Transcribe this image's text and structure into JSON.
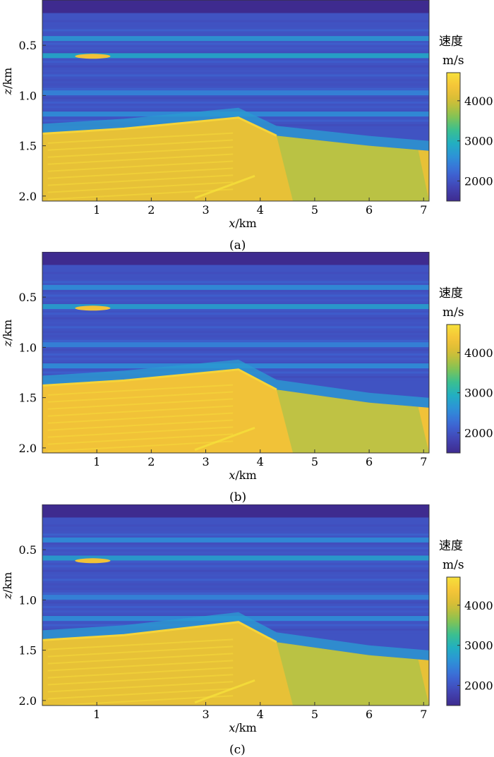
{
  "colormap": [
    "#3e2b8f",
    "#4246b5",
    "#3d67d6",
    "#2f8ed9",
    "#21aec4",
    "#3bc08e",
    "#8ac34f",
    "#d2bd36",
    "#f5c338",
    "#f7e13a"
  ],
  "chart_data": [
    {
      "type": "heatmap",
      "caption": "(a)",
      "xlabel_var": "x",
      "xlabel_unit": "/km",
      "ylabel_var": "z",
      "ylabel_unit": "/km",
      "xlim": [
        0,
        7.1
      ],
      "ylim": [
        2.05,
        0.05
      ],
      "xticks": [
        1,
        2,
        3,
        4,
        5,
        6,
        7
      ],
      "yticks": [
        0.5,
        1.0,
        1.5,
        2.0
      ],
      "ytick_labels": [
        "0.5",
        "1.0",
        "1.5",
        "2.0"
      ],
      "colorbar": {
        "title": "速度",
        "unit": "m/s",
        "range": [
          1500,
          4700
        ],
        "ticks": [
          2000,
          3000,
          4000
        ]
      },
      "water_depth_km": 0.18,
      "bright_lens": {
        "x_range": [
          0.6,
          1.25
        ],
        "z": 0.61
      },
      "layers": [
        {
          "z": 0.43,
          "velocity": 2700
        },
        {
          "z": 0.6,
          "velocity": 2900
        },
        {
          "z": 0.97,
          "velocity": 2500
        },
        {
          "z": 1.18,
          "velocity": 2600
        }
      ],
      "high_velocity_top": {
        "x": [
          0,
          1.5,
          3.6,
          4.3,
          6.0,
          7.1
        ],
        "z": [
          1.38,
          1.33,
          1.22,
          1.4,
          1.5,
          1.55
        ],
        "velocity": 4200
      },
      "background_velocity": 2000
    },
    {
      "type": "heatmap",
      "caption": "(b)",
      "xlabel_var": "x",
      "xlabel_unit": "/km",
      "ylabel_var": "z",
      "ylabel_unit": "/km",
      "xlim": [
        0,
        7.1
      ],
      "ylim": [
        2.05,
        0.05
      ],
      "xticks": [
        1,
        2,
        3,
        4,
        5,
        6,
        7
      ],
      "yticks": [
        0.5,
        1.0,
        1.5,
        2.0
      ],
      "ytick_labels": [
        "0.5",
        "1.0",
        "1.5",
        "2.0"
      ],
      "colorbar": {
        "title": "速度",
        "unit": "m/s",
        "range": [
          1500,
          4700
        ],
        "ticks": [
          2000,
          3000,
          4000
        ]
      },
      "water_depth_km": 0.18,
      "bright_lens": {
        "x_range": [
          0.6,
          1.25
        ],
        "z": 0.61
      },
      "layers": [
        {
          "z": 0.4,
          "velocity": 2600
        },
        {
          "z": 0.59,
          "velocity": 2800
        },
        {
          "z": 0.97,
          "velocity": 2500
        },
        {
          "z": 1.18,
          "velocity": 2600
        }
      ],
      "high_velocity_top": {
        "x": [
          0,
          1.5,
          3.6,
          4.3,
          6.0,
          7.1
        ],
        "z": [
          1.38,
          1.33,
          1.22,
          1.42,
          1.55,
          1.6
        ],
        "velocity": 4300
      },
      "background_velocity": 2000
    },
    {
      "type": "heatmap",
      "caption": "(c)",
      "xlabel_var": "x",
      "xlabel_unit": "/km",
      "ylabel_var": "z",
      "ylabel_unit": "/km",
      "xlim": [
        0,
        7.1
      ],
      "ylim": [
        2.05,
        0.05
      ],
      "xticks": [
        1,
        3,
        4,
        5,
        6,
        7
      ],
      "yticks": [
        0.5,
        1.0,
        1.5,
        2.0
      ],
      "ytick_labels": [
        "0.5",
        "1.0",
        "1.5",
        "2.0"
      ],
      "colorbar": {
        "title": "速度",
        "unit": "m/s",
        "range": [
          1500,
          4700
        ],
        "ticks": [
          2000,
          3000,
          4000
        ]
      },
      "water_depth_km": 0.18,
      "bright_lens": {
        "x_range": [
          0.6,
          1.25
        ],
        "z": 0.61
      },
      "layers": [
        {
          "z": 0.4,
          "velocity": 2600
        },
        {
          "z": 0.58,
          "velocity": 2800
        },
        {
          "z": 0.97,
          "velocity": 2500
        },
        {
          "z": 1.18,
          "velocity": 2600
        }
      ],
      "high_velocity_top": {
        "x": [
          0,
          1.5,
          3.6,
          4.3,
          6.0,
          7.1
        ],
        "z": [
          1.4,
          1.35,
          1.22,
          1.42,
          1.55,
          1.6
        ],
        "velocity": 4200
      },
      "background_velocity": 2000
    }
  ]
}
